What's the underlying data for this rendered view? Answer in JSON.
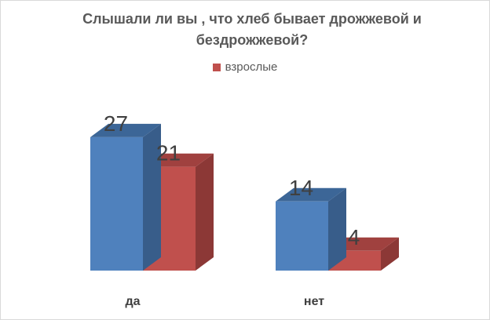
{
  "chart_data": {
    "type": "bar",
    "title": "Слышали ли вы , что хлеб бывает дрожжевой  и бездрожжевой?",
    "categories": [
      "да",
      "нет"
    ],
    "series": [
      {
        "name": "",
        "values": [
          27,
          14
        ],
        "color": "#4f81bd",
        "side_color": "#385d8a",
        "top_color": "#3c6697"
      },
      {
        "name": "взрослые",
        "values": [
          21,
          4
        ],
        "color": "#c0504d",
        "side_color": "#8c3836",
        "top_color": "#a0413f"
      }
    ],
    "ylim": [
      0,
      27
    ],
    "grid": false,
    "three_d": true,
    "legend_position": "top"
  },
  "legend": {
    "label": "взрослые",
    "color": "#c0504d"
  }
}
